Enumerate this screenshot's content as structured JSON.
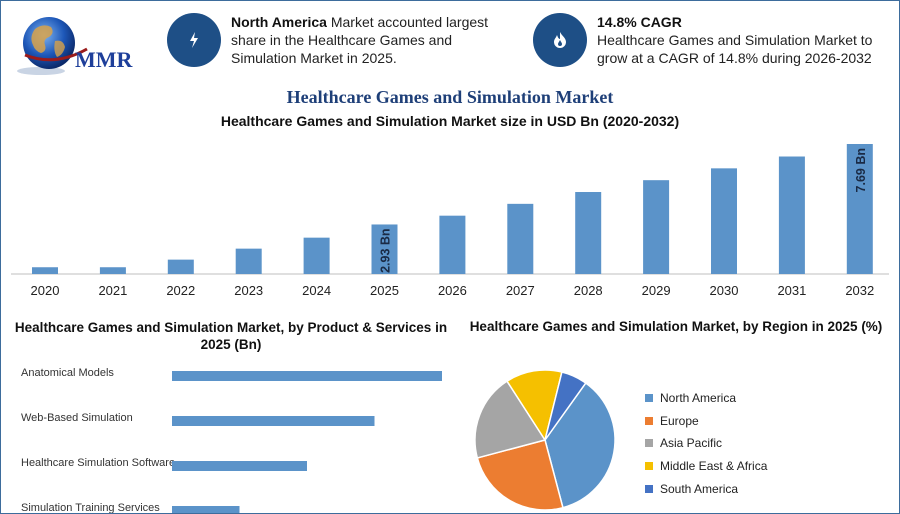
{
  "header": {
    "logo_text": "MMR",
    "cards": [
      {
        "icon": "lightning-icon",
        "bold": "North America",
        "text": " Market accounted largest share in the Healthcare Games and Simulation Market in 2025."
      },
      {
        "icon": "flame-icon",
        "bold": "14.8% CAGR",
        "text": "Healthcare Games and Simulation Market to grow at a CAGR of 14.8% during 2026-2032"
      }
    ]
  },
  "colors": {
    "primary": "#1e4f86",
    "bar": "#5b93c9",
    "title": "#1e3f78"
  },
  "main_title": "Healthcare Games and Simulation Market",
  "chart_data": [
    {
      "type": "bar",
      "title": "Healthcare Games and Simulation Market size in USD Bn (2020-2032)",
      "categories": [
        "2020",
        "2021",
        "2022",
        "2023",
        "2024",
        "2025",
        "2026",
        "2027",
        "2028",
        "2029",
        "2030",
        "2031",
        "2032"
      ],
      "values": [
        0.4,
        0.4,
        0.85,
        1.5,
        2.15,
        2.93,
        3.45,
        4.15,
        4.85,
        5.55,
        6.25,
        6.95,
        7.69
      ],
      "data_labels": [
        null,
        null,
        null,
        null,
        null,
        "2.93 Bn",
        null,
        null,
        null,
        null,
        null,
        null,
        "7.69 Bn"
      ],
      "ylim": [
        0,
        7.69
      ]
    },
    {
      "type": "bar",
      "orientation": "horizontal",
      "title": "Healthcare Games and Simulation Market, by Product & Services in 2025 (Bn)",
      "categories": [
        "Anatomical Models",
        "Web-Based Simulation",
        "Healthcare Simulation Software",
        "Simulation Training Services"
      ],
      "values": [
        1.0,
        0.75,
        0.5,
        0.25
      ]
    },
    {
      "type": "pie",
      "title": "Healthcare Games and Simulation Market, by Region in 2025 (%)",
      "categories": [
        "North America",
        "Europe",
        "Asia Pacific",
        "Middle East & Africa",
        "South America"
      ],
      "values": [
        36,
        25,
        20,
        13,
        6
      ],
      "colors": [
        "#5b93c9",
        "#ec7d31",
        "#a5a5a5",
        "#f5c000",
        "#4472c4"
      ]
    }
  ]
}
